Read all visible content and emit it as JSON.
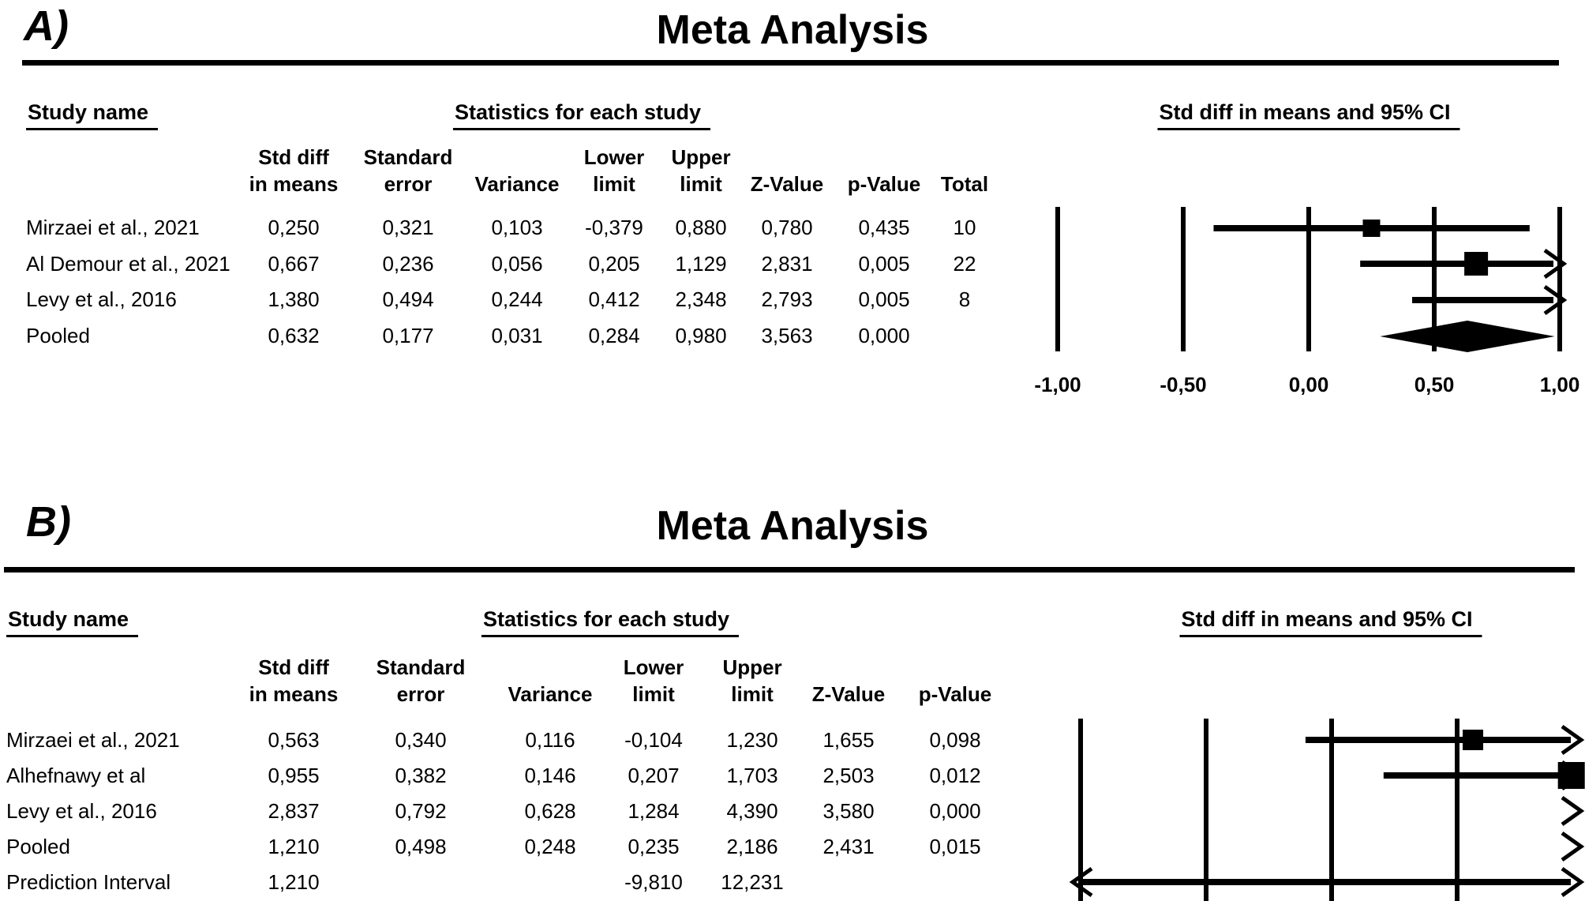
{
  "panels": [
    {
      "label": "A)",
      "title": "Meta Analysis",
      "headers": {
        "study": "Study name",
        "stats": "Statistics for each study",
        "ci": "Std diff in means and 95% CI"
      },
      "columns": [
        {
          "line1": "Std diff",
          "line2": "in means"
        },
        {
          "line1": "Standard",
          "line2": "error"
        },
        {
          "line1": "",
          "line2": "Variance"
        },
        {
          "line1": "Lower",
          "line2": "limit"
        },
        {
          "line1": "Upper",
          "line2": "limit"
        },
        {
          "line1": "",
          "line2": "Z-Value"
        },
        {
          "line1": "",
          "line2": "p-Value"
        },
        {
          "line1": "",
          "line2": "Total"
        }
      ],
      "rows": [
        {
          "name": "Mirzaei et al., 2021",
          "cells": [
            "0,250",
            "0,321",
            "0,103",
            "-0,379",
            "0,880",
            "0,780",
            "0,435",
            "10"
          ]
        },
        {
          "name": "Al Demour et al., 2021",
          "cells": [
            "0,667",
            "0,236",
            "0,056",
            "0,205",
            "1,129",
            "2,831",
            "0,005",
            "22"
          ]
        },
        {
          "name": "Levy et al., 2016",
          "cells": [
            "1,380",
            "0,494",
            "0,244",
            "0,412",
            "2,348",
            "2,793",
            "0,005",
            "8"
          ]
        },
        {
          "name": "Pooled",
          "cells": [
            "0,632",
            "0,177",
            "0,031",
            "0,284",
            "0,980",
            "3,563",
            "0,000",
            ""
          ]
        }
      ],
      "axis_labels": [
        "-1,00",
        "-0,50",
        "0,00",
        "0,50",
        "1,00"
      ]
    },
    {
      "label": "B)",
      "title": "Meta Analysis",
      "headers": {
        "study": "Study name",
        "stats": "Statistics for each study",
        "ci": "Std diff in means and 95% CI"
      },
      "columns": [
        {
          "line1": "Std diff",
          "line2": "in means"
        },
        {
          "line1": "Standard",
          "line2": "error"
        },
        {
          "line1": "",
          "line2": "Variance"
        },
        {
          "line1": "Lower",
          "line2": "limit"
        },
        {
          "line1": "Upper",
          "line2": "limit"
        },
        {
          "line1": "",
          "line2": "Z-Value"
        },
        {
          "line1": "",
          "line2": "p-Value"
        }
      ],
      "rows": [
        {
          "name": "Mirzaei et al., 2021",
          "cells": [
            "0,563",
            "0,340",
            "0,116",
            "-0,104",
            "1,230",
            "1,655",
            "0,098"
          ]
        },
        {
          "name": "Alhefnawy et al",
          "cells": [
            "0,955",
            "0,382",
            "0,146",
            "0,207",
            "1,703",
            "2,503",
            "0,012"
          ]
        },
        {
          "name": "Levy et al., 2016",
          "cells": [
            "2,837",
            "0,792",
            "0,628",
            "1,284",
            "4,390",
            "3,580",
            "0,000"
          ]
        },
        {
          "name": "Pooled",
          "cells": [
            "1,210",
            "0,498",
            "0,248",
            "0,235",
            "2,186",
            "2,431",
            "0,015"
          ]
        },
        {
          "name": "Prediction Interval",
          "cells": [
            "1,210",
            "",
            "",
            "-9,810",
            "12,231",
            "",
            ""
          ]
        }
      ],
      "axis_labels": []
    }
  ],
  "chart_data": [
    {
      "type": "forest",
      "panel": "A",
      "title": "Meta Analysis",
      "effect_measure": "Std diff in means and 95% CI",
      "xlim": [
        -1.0,
        1.0
      ],
      "xticks": [
        -1.0,
        -0.5,
        0.0,
        0.5,
        1.0
      ],
      "rows": [
        {
          "name": "Mirzaei et al., 2021",
          "kind": "study",
          "est": 0.25,
          "se": 0.321,
          "variance": 0.103,
          "lower": -0.379,
          "upper": 0.88,
          "z": 0.78,
          "p": 0.435,
          "total": 10
        },
        {
          "name": "Al Demour et al., 2021",
          "kind": "study",
          "est": 0.667,
          "se": 0.236,
          "variance": 0.056,
          "lower": 0.205,
          "upper": 1.129,
          "z": 2.831,
          "p": 0.005,
          "total": 22
        },
        {
          "name": "Levy et al., 2016",
          "kind": "study",
          "est": 1.38,
          "se": 0.494,
          "variance": 0.244,
          "lower": 0.412,
          "upper": 2.348,
          "z": 2.793,
          "p": 0.005,
          "total": 8
        },
        {
          "name": "Pooled",
          "kind": "pooled",
          "est": 0.632,
          "se": 0.177,
          "variance": 0.031,
          "lower": 0.284,
          "upper": 0.98,
          "z": 3.563,
          "p": 0.0
        }
      ]
    },
    {
      "type": "forest",
      "panel": "B",
      "title": "Meta Analysis",
      "effect_measure": "Std diff in means and 95% CI",
      "xlim": [
        -1.0,
        1.0
      ],
      "xticks": [
        -1.0,
        -0.5,
        0.0,
        0.5
      ],
      "rows": [
        {
          "name": "Mirzaei et al., 2021",
          "kind": "study",
          "est": 0.563,
          "se": 0.34,
          "variance": 0.116,
          "lower": -0.104,
          "upper": 1.23,
          "z": 1.655,
          "p": 0.098
        },
        {
          "name": "Alhefnawy et al",
          "kind": "study",
          "est": 0.955,
          "se": 0.382,
          "variance": 0.146,
          "lower": 0.207,
          "upper": 1.703,
          "z": 2.503,
          "p": 0.012
        },
        {
          "name": "Levy et al., 2016",
          "kind": "study",
          "est": 2.837,
          "se": 0.792,
          "variance": 0.628,
          "lower": 1.284,
          "upper": 4.39,
          "z": 3.58,
          "p": 0.0
        },
        {
          "name": "Pooled",
          "kind": "pooled",
          "est": 1.21,
          "se": 0.498,
          "variance": 0.248,
          "lower": 0.235,
          "upper": 2.186,
          "z": 2.431,
          "p": 0.015
        },
        {
          "name": "Prediction Interval",
          "kind": "prediction",
          "est": 1.21,
          "lower": -9.81,
          "upper": 12.231
        }
      ]
    }
  ],
  "colors": {
    "ink": "#000000",
    "background": "#ffffff"
  }
}
